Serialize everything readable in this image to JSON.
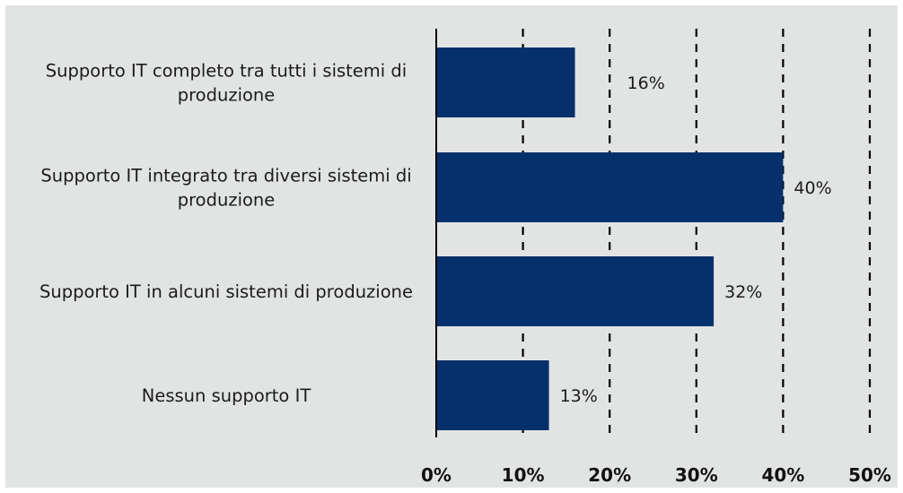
{
  "chart_data": {
    "type": "bar",
    "orientation": "horizontal",
    "title": "",
    "xlabel": "",
    "ylabel": "",
    "categories": [
      [
        "Supporto IT completo tra tutti i sistemi di",
        "produzione"
      ],
      [
        "Supporto IT integrato tra diversi sistemi di",
        "produzione"
      ],
      [
        "Supporto IT in alcuni sistemi di produzione"
      ],
      [
        "Nessun supporto IT"
      ]
    ],
    "values": [
      16,
      40,
      32,
      13
    ],
    "data_labels": [
      "16%",
      "40%",
      "32%",
      "13%"
    ],
    "xlim": [
      0,
      50
    ],
    "x_ticks": [
      0,
      10,
      20,
      30,
      40,
      50
    ],
    "x_tick_labels": [
      "0%",
      "10%",
      "20%",
      "30%",
      "40%",
      "50%"
    ],
    "grid": "vertical dashed",
    "bar_color": "#06306b",
    "background_color": "#e2e4e4"
  }
}
